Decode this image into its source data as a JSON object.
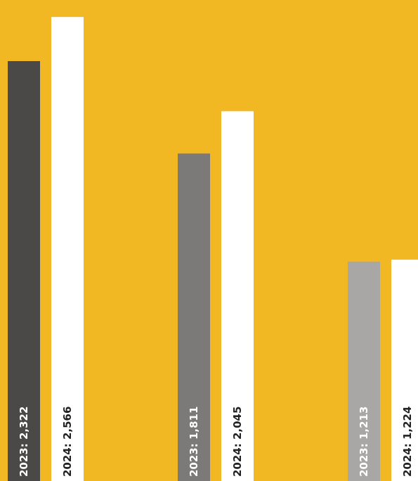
{
  "background_color": "#f2b824",
  "chart_data": {
    "type": "bar",
    "title": "",
    "xlabel": "",
    "ylabel": "",
    "ylim": [
      0,
      2660
    ],
    "grid": false,
    "legend": "none",
    "groups": [
      {
        "bars": [
          {
            "year": "2023",
            "value": 2322,
            "label": "2023: 2,322",
            "color": "#4a4948",
            "text_color": "#ffffff"
          },
          {
            "year": "2024",
            "value": 2566,
            "label": "2024: 2,566",
            "color": "#ffffff",
            "text_color": "#222222"
          }
        ]
      },
      {
        "bars": [
          {
            "year": "2023",
            "value": 1811,
            "label": "2023: 1,811",
            "color": "#7b7a79",
            "text_color": "#ffffff"
          },
          {
            "year": "2024",
            "value": 2045,
            "label": "2024: 2,045",
            "color": "#ffffff",
            "text_color": "#222222"
          }
        ]
      },
      {
        "bars": [
          {
            "year": "2023",
            "value": 1213,
            "label": "2023: 1,213",
            "color": "#a8a7a6",
            "text_color": "#ffffff"
          },
          {
            "year": "2024",
            "value": 1224,
            "label": "2024: 1,224",
            "color": "#ffffff",
            "text_color": "#222222"
          }
        ]
      }
    ]
  }
}
